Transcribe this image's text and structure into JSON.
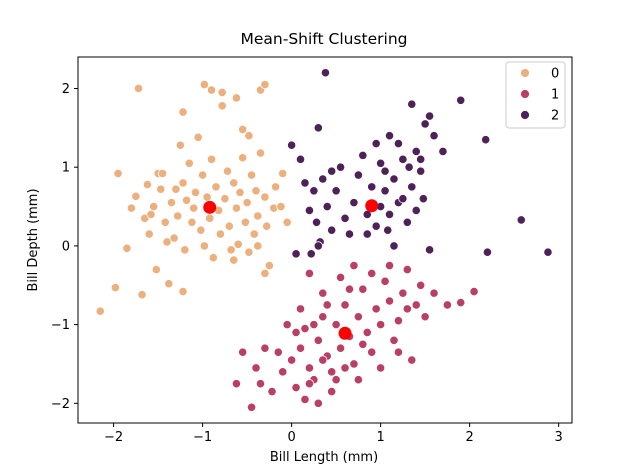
{
  "chart_data": {
    "type": "scatter",
    "title": "Mean-Shift Clustering",
    "xlabel": "Bill Length (mm)",
    "ylabel": "Bill Depth (mm)",
    "xlim": [
      -2.4,
      3.15
    ],
    "ylim": [
      -2.25,
      2.4
    ],
    "xticks": [
      -2,
      -1,
      0,
      1,
      2,
      3
    ],
    "yticks": [
      -2,
      -1,
      0,
      1,
      2
    ],
    "grid": false,
    "legend_position": "top-right",
    "colors": {
      "0": "#ebb07e",
      "1": "#b93f65",
      "2": "#4e2159",
      "center": "#ff0000"
    },
    "series": [
      {
        "name": "0",
        "points": [
          [
            -1.95,
            0.92
          ],
          [
            -1.8,
            0.48
          ],
          [
            -1.75,
            0.63
          ],
          [
            -1.65,
            0.35
          ],
          [
            -1.6,
            0.15
          ],
          [
            -1.58,
            0.4
          ],
          [
            -1.55,
            0.5
          ],
          [
            -1.5,
            0.92
          ],
          [
            -1.47,
            0.72
          ],
          [
            -1.42,
            0.3
          ],
          [
            -1.4,
            0.05
          ],
          [
            -1.35,
            0.55
          ],
          [
            -1.32,
            0.1
          ],
          [
            -1.28,
            0.38
          ],
          [
            -1.25,
            1.28
          ],
          [
            -1.22,
            0.8
          ],
          [
            -1.2,
            -0.05
          ],
          [
            -1.18,
            0.58
          ],
          [
            -1.15,
            1.05
          ],
          [
            -1.12,
            0.3
          ],
          [
            -1.1,
            0.48
          ],
          [
            -1.08,
            0.68
          ],
          [
            -1.05,
            1.38
          ],
          [
            -1.02,
            0.2
          ],
          [
            -1.0,
            0.9
          ],
          [
            -0.98,
            0.0
          ],
          [
            -0.95,
            0.62
          ],
          [
            -0.92,
            0.35
          ],
          [
            -0.9,
            1.1
          ],
          [
            -0.88,
            -0.15
          ],
          [
            -0.85,
            0.75
          ],
          [
            -0.82,
            0.45
          ],
          [
            -0.8,
            0.15
          ],
          [
            -0.78,
            1.95
          ],
          [
            -0.75,
            0.6
          ],
          [
            -0.72,
            0.95
          ],
          [
            -0.7,
            0.25
          ],
          [
            -0.68,
            -0.05
          ],
          [
            -0.65,
            0.8
          ],
          [
            -0.62,
            0.48
          ],
          [
            -0.6,
            0.02
          ],
          [
            -0.58,
            0.68
          ],
          [
            -0.55,
            1.12
          ],
          [
            -0.52,
            0.3
          ],
          [
            -0.5,
            0.55
          ],
          [
            -0.48,
            -0.08
          ],
          [
            -0.45,
            0.9
          ],
          [
            -0.42,
            0.15
          ],
          [
            -0.4,
            0.7
          ],
          [
            -0.38,
            0.38
          ],
          [
            -0.35,
            1.18
          ],
          [
            -0.3,
            0.62
          ],
          [
            -0.28,
            0.25
          ],
          [
            -0.25,
            -0.25
          ],
          [
            -0.2,
            0.48
          ],
          [
            -0.18,
            0.75
          ],
          [
            -0.12,
            0.5
          ],
          [
            -0.1,
            0.92
          ],
          [
            -0.05,
            0.3
          ],
          [
            -2.15,
            -0.83
          ],
          [
            -1.98,
            -0.53
          ],
          [
            -1.85,
            -0.03
          ],
          [
            -1.68,
            -0.62
          ],
          [
            -1.52,
            -0.3
          ],
          [
            -1.38,
            -0.48
          ],
          [
            -1.22,
            -0.58
          ],
          [
            -1.72,
            2.0
          ],
          [
            -1.22,
            1.7
          ],
          [
            -0.98,
            2.05
          ],
          [
            -0.9,
            1.98
          ],
          [
            -0.78,
            1.78
          ],
          [
            -0.62,
            1.88
          ],
          [
            -0.55,
            1.48
          ],
          [
            -0.35,
            1.98
          ],
          [
            -0.3,
            2.05
          ],
          [
            -0.48,
            1.4
          ],
          [
            -0.38,
            0.0
          ],
          [
            -0.3,
            -0.35
          ],
          [
            -1.45,
            0.92
          ],
          [
            -1.62,
            0.78
          ],
          [
            -1.3,
            0.72
          ],
          [
            -0.65,
            -0.18
          ]
        ]
      },
      {
        "name": "1",
        "points": [
          [
            -0.35,
            -1.75
          ],
          [
            -0.22,
            -1.85
          ],
          [
            -0.1,
            -1.6
          ],
          [
            0.0,
            -1.45
          ],
          [
            0.05,
            -1.8
          ],
          [
            0.1,
            -1.3
          ],
          [
            0.15,
            -1.05
          ],
          [
            0.2,
            -1.55
          ],
          [
            0.25,
            -1.7
          ],
          [
            0.3,
            -1.2
          ],
          [
            0.35,
            -0.9
          ],
          [
            0.4,
            -1.4
          ],
          [
            0.45,
            -1.6
          ],
          [
            0.5,
            -1.0
          ],
          [
            0.55,
            -1.3
          ],
          [
            0.6,
            -0.75
          ],
          [
            0.65,
            -1.15
          ],
          [
            0.7,
            -1.5
          ],
          [
            0.75,
            -0.9
          ],
          [
            0.8,
            -0.55
          ],
          [
            0.85,
            -1.1
          ],
          [
            0.9,
            -1.35
          ],
          [
            0.95,
            -0.8
          ],
          [
            1.0,
            -1.0
          ],
          [
            1.05,
            -0.45
          ],
          [
            1.1,
            -0.7
          ],
          [
            1.15,
            -1.2
          ],
          [
            1.2,
            -0.95
          ],
          [
            1.25,
            -0.6
          ],
          [
            1.3,
            -0.3
          ],
          [
            1.35,
            -1.45
          ],
          [
            1.4,
            -0.75
          ],
          [
            1.45,
            -0.5
          ],
          [
            1.5,
            -0.9
          ],
          [
            1.6,
            -0.6
          ],
          [
            1.75,
            -0.75
          ],
          [
            1.9,
            -0.72
          ],
          [
            2.05,
            -0.58
          ],
          [
            -0.62,
            -1.75
          ],
          [
            -0.45,
            -2.05
          ],
          [
            -0.4,
            -1.55
          ],
          [
            -0.3,
            -1.3
          ],
          [
            0.15,
            -1.95
          ],
          [
            0.3,
            -2.0
          ],
          [
            0.45,
            -1.85
          ],
          [
            0.2,
            -0.35
          ],
          [
            0.35,
            -0.6
          ],
          [
            0.55,
            -0.4
          ],
          [
            0.7,
            -0.25
          ],
          [
            0.9,
            -0.35
          ],
          [
            1.1,
            -0.25
          ],
          [
            0.1,
            -0.8
          ],
          [
            0.25,
            -1.0
          ],
          [
            0.4,
            -0.75
          ],
          [
            0.05,
            -1.1
          ],
          [
            0.6,
            -1.55
          ],
          [
            0.8,
            -1.25
          ],
          [
            1.0,
            -1.55
          ],
          [
            1.2,
            -1.35
          ],
          [
            0.5,
            -1.7
          ],
          [
            0.35,
            -1.45
          ],
          [
            -0.15,
            -1.35
          ],
          [
            -0.05,
            -1.0
          ],
          [
            0.65,
            -0.55
          ],
          [
            1.3,
            -0.8
          ],
          [
            0.75,
            -1.7
          ],
          [
            0.2,
            -1.75
          ],
          [
            -0.55,
            -1.35
          ]
        ]
      },
      {
        "name": "2",
        "points": [
          [
            0.0,
            1.28
          ],
          [
            0.1,
            1.1
          ],
          [
            0.15,
            0.8
          ],
          [
            0.2,
            0.45
          ],
          [
            0.25,
            0.7
          ],
          [
            0.28,
            0.3
          ],
          [
            0.3,
            1.5
          ],
          [
            0.32,
            0.05
          ],
          [
            0.35,
            0.85
          ],
          [
            0.38,
            2.2
          ],
          [
            0.4,
            0.5
          ],
          [
            0.45,
            0.2
          ],
          [
            0.5,
            0.7
          ],
          [
            0.55,
            1.0
          ],
          [
            0.6,
            0.35
          ],
          [
            0.65,
            0.15
          ],
          [
            0.7,
            0.55
          ],
          [
            0.75,
            0.9
          ],
          [
            0.8,
            1.15
          ],
          [
            0.85,
            0.4
          ],
          [
            0.9,
            0.75
          ],
          [
            0.95,
            1.3
          ],
          [
            1.0,
            0.5
          ],
          [
            1.05,
            0.95
          ],
          [
            1.08,
            0.2
          ],
          [
            1.1,
            1.4
          ],
          [
            1.15,
            0.85
          ],
          [
            1.2,
            0.55
          ],
          [
            1.25,
            1.1
          ],
          [
            1.3,
            0.3
          ],
          [
            1.35,
            0.75
          ],
          [
            1.4,
            1.2
          ],
          [
            1.45,
            0.95
          ],
          [
            1.5,
            1.55
          ],
          [
            1.55,
            1.65
          ],
          [
            1.6,
            1.4
          ],
          [
            1.7,
            1.2
          ],
          [
            1.9,
            1.85
          ],
          [
            2.18,
            1.35
          ],
          [
            2.58,
            0.33
          ],
          [
            2.2,
            -0.08
          ],
          [
            2.88,
            -0.08
          ],
          [
            0.05,
            -0.1
          ],
          [
            0.22,
            -0.1
          ],
          [
            1.35,
            1.8
          ],
          [
            1.25,
            0.6
          ],
          [
            1.15,
            0.0
          ],
          [
            1.4,
            0.45
          ],
          [
            1.0,
            1.05
          ],
          [
            0.85,
            0.15
          ],
          [
            1.32,
            1.0
          ],
          [
            1.48,
            0.6
          ],
          [
            1.2,
            1.3
          ],
          [
            0.95,
            0.25
          ],
          [
            1.05,
            0.7
          ],
          [
            1.55,
            -0.05
          ],
          [
            0.45,
            0.95
          ],
          [
            0.3,
            0.0
          ],
          [
            1.1,
            0.4
          ],
          [
            1.45,
            1.1
          ]
        ]
      }
    ],
    "centers": [
      [
        -0.92,
        0.49
      ],
      [
        0.9,
        0.51
      ],
      [
        0.6,
        -1.11
      ]
    ],
    "legend": [
      {
        "label": "0",
        "color": "#ebb07e"
      },
      {
        "label": "1",
        "color": "#b93f65"
      },
      {
        "label": "2",
        "color": "#4e2159"
      }
    ]
  }
}
